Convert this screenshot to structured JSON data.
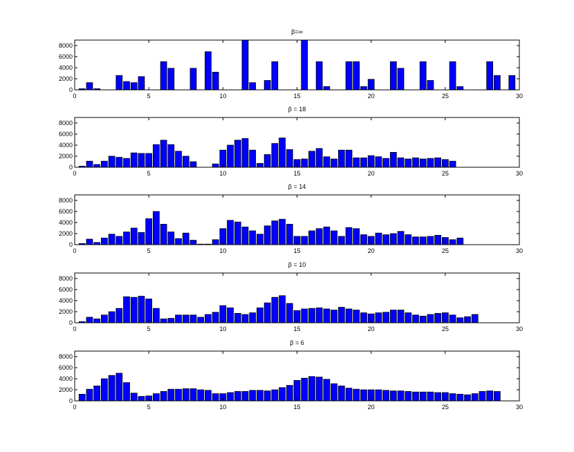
{
  "colors": {
    "bar": "#0000ff",
    "bar_edge": "#000000",
    "axis": "#000000",
    "background": "#ffffff"
  },
  "chart_data": [
    {
      "type": "bar",
      "title": "β=∞",
      "xlim": [
        0,
        30
      ],
      "ylim": [
        0,
        9000
      ],
      "xticks": [
        "0",
        "5",
        "10",
        "15",
        "20",
        "25",
        "30"
      ],
      "yticks": [
        "0",
        "2000",
        "4000",
        "6000",
        "8000"
      ],
      "bin_width": 0.5,
      "x": [
        0.5,
        1,
        1.5,
        2,
        2.5,
        3,
        3.5,
        4,
        4.5,
        5,
        5.5,
        6,
        6.5,
        7,
        7.5,
        8,
        8.5,
        9,
        9.5,
        10,
        10.5,
        11,
        11.5,
        12,
        12.5,
        13,
        13.5,
        14,
        14.5,
        15,
        15.5,
        16,
        16.5,
        17,
        17.5,
        18,
        18.5,
        19,
        19.5,
        20,
        20.5,
        21,
        21.5,
        22,
        22.5,
        23,
        23.5,
        24,
        24.5,
        25,
        25.5,
        26,
        26.5,
        27,
        27.5,
        28,
        28.5,
        29,
        29.5,
        30
      ],
      "values": [
        200,
        1300,
        200,
        0,
        0,
        2600,
        1500,
        1300,
        2400,
        0,
        0,
        5100,
        3900,
        0,
        0,
        3900,
        0,
        6900,
        3200,
        0,
        0,
        0,
        9000,
        1300,
        0,
        1700,
        5100,
        0,
        0,
        0,
        9000,
        0,
        5100,
        600,
        0,
        0,
        5100,
        5100,
        600,
        1900,
        0,
        0,
        5100,
        3900,
        0,
        0,
        5100,
        1700,
        0,
        0,
        5100,
        600,
        0,
        0,
        0,
        5100,
        2600,
        0,
        2600,
        0
      ],
      "grid": false
    },
    {
      "type": "bar",
      "title": "β = 18",
      "xlim": [
        0,
        30
      ],
      "ylim": [
        0,
        9000
      ],
      "xticks": [
        "0",
        "5",
        "10",
        "15",
        "20",
        "25",
        "30"
      ],
      "yticks": [
        "0",
        "2000",
        "4000",
        "6000",
        "8000"
      ],
      "bin_width": 0.5,
      "x": [
        0.5,
        1,
        1.5,
        2,
        2.5,
        3,
        3.5,
        4,
        4.5,
        5,
        5.5,
        6,
        6.5,
        7,
        7.5,
        8,
        8.5,
        9,
        9.5,
        10,
        10.5,
        11,
        11.5,
        12,
        12.5,
        13,
        13.5,
        14,
        14.5,
        15,
        15.5,
        16,
        16.5,
        17,
        17.5,
        18,
        18.5,
        19,
        19.5,
        20,
        20.5,
        21,
        21.5,
        22,
        22.5,
        23,
        23.5,
        24,
        24.5,
        25,
        25.5,
        26,
        26.5,
        27,
        27.5,
        28,
        28.5,
        29,
        29.5,
        30
      ],
      "values": [
        200,
        1100,
        500,
        1100,
        2000,
        1800,
        1600,
        2600,
        2500,
        2500,
        4100,
        4900,
        4100,
        2900,
        2000,
        1000,
        0,
        0,
        600,
        3100,
        4000,
        4900,
        5200,
        3100,
        700,
        2300,
        4300,
        5300,
        3200,
        1400,
        1500,
        2900,
        3400,
        1900,
        1500,
        3100,
        3100,
        1700,
        1700,
        2100,
        1900,
        1600,
        2700,
        1700,
        1500,
        1700,
        1500,
        1600,
        1700,
        1400,
        1100,
        0,
        0,
        0,
        0,
        0,
        0,
        0,
        0,
        0
      ],
      "grid": false
    },
    {
      "type": "bar",
      "title": "β = 14",
      "xlim": [
        0,
        30
      ],
      "ylim": [
        0,
        9000
      ],
      "xticks": [
        "0",
        "5",
        "10",
        "15",
        "20",
        "25",
        "30"
      ],
      "yticks": [
        "0",
        "2000",
        "4000",
        "6000",
        "8000"
      ],
      "bin_width": 0.5,
      "x": [
        0.5,
        1,
        1.5,
        2,
        2.5,
        3,
        3.5,
        4,
        4.5,
        5,
        5.5,
        6,
        6.5,
        7,
        7.5,
        8,
        8.5,
        9,
        9.5,
        10,
        10.5,
        11,
        11.5,
        12,
        12.5,
        13,
        13.5,
        14,
        14.5,
        15,
        15.5,
        16,
        16.5,
        17,
        17.5,
        18,
        18.5,
        19,
        19.5,
        20,
        20.5,
        21,
        21.5,
        22,
        22.5,
        23,
        23.5,
        24,
        24.5,
        25,
        25.5,
        26,
        26.5,
        27,
        27.5,
        28,
        28.5,
        29,
        29.5,
        30
      ],
      "values": [
        200,
        1000,
        400,
        1200,
        1900,
        1500,
        2300,
        3000,
        2200,
        4700,
        6000,
        3700,
        2300,
        1100,
        2100,
        800,
        100,
        100,
        900,
        2900,
        4400,
        4100,
        3200,
        2500,
        1900,
        3400,
        4300,
        4600,
        3700,
        1500,
        1500,
        2500,
        2900,
        3200,
        2500,
        1500,
        3100,
        2900,
        1800,
        1500,
        2100,
        1800,
        2000,
        2400,
        1800,
        1400,
        1400,
        1500,
        1700,
        1300,
        900,
        1200,
        0,
        0,
        0,
        0,
        0,
        0,
        0,
        0
      ],
      "grid": false
    },
    {
      "type": "bar",
      "title": "β = 10",
      "xlim": [
        0,
        30
      ],
      "ylim": [
        0,
        9000
      ],
      "xticks": [
        "0",
        "5",
        "10",
        "15",
        "20",
        "25",
        "30"
      ],
      "yticks": [
        "0",
        "2000",
        "4000",
        "6000",
        "8000"
      ],
      "bin_width": 0.5,
      "x": [
        0.5,
        1,
        1.5,
        2,
        2.5,
        3,
        3.5,
        4,
        4.5,
        5,
        5.5,
        6,
        6.5,
        7,
        7.5,
        8,
        8.5,
        9,
        9.5,
        10,
        10.5,
        11,
        11.5,
        12,
        12.5,
        13,
        13.5,
        14,
        14.5,
        15,
        15.5,
        16,
        16.5,
        17,
        17.5,
        18,
        18.5,
        19,
        19.5,
        20,
        20.5,
        21,
        21.5,
        22,
        22.5,
        23,
        23.5,
        24,
        24.5,
        25,
        25.5,
        26,
        26.5,
        27,
        27.5,
        28,
        28.5,
        29,
        29.5,
        30
      ],
      "values": [
        200,
        1000,
        700,
        1400,
        2000,
        2600,
        4700,
        4600,
        4800,
        4300,
        2600,
        700,
        800,
        1400,
        1400,
        1400,
        1000,
        1500,
        1900,
        3100,
        2700,
        1700,
        1500,
        1800,
        2700,
        3600,
        4600,
        4900,
        3500,
        2200,
        2500,
        2600,
        2700,
        2500,
        2300,
        2800,
        2500,
        2300,
        1800,
        1600,
        1800,
        1900,
        2300,
        2300,
        1800,
        1400,
        1200,
        1500,
        1700,
        1800,
        1400,
        900,
        1100,
        1500,
        0,
        0,
        0,
        0,
        0,
        0
      ],
      "grid": false
    },
    {
      "type": "bar",
      "title": "β = 6",
      "xlim": [
        0,
        30
      ],
      "ylim": [
        0,
        9000
      ],
      "xticks": [
        "0",
        "5",
        "10",
        "15",
        "20",
        "25",
        "30"
      ],
      "yticks": [
        "0",
        "2000",
        "4000",
        "6000",
        "8000"
      ],
      "bin_width": 0.5,
      "x": [
        0.5,
        1,
        1.5,
        2,
        2.5,
        3,
        3.5,
        4,
        4.5,
        5,
        5.5,
        6,
        6.5,
        7,
        7.5,
        8,
        8.5,
        9,
        9.5,
        10,
        10.5,
        11,
        11.5,
        12,
        12.5,
        13,
        13.5,
        14,
        14.5,
        15,
        15.5,
        16,
        16.5,
        17,
        17.5,
        18,
        18.5,
        19,
        19.5,
        20,
        20.5,
        21,
        21.5,
        22,
        22.5,
        23,
        23.5,
        24,
        24.5,
        25,
        25.5,
        26,
        26.5,
        27,
        27.5,
        28,
        28.5,
        29,
        29.5,
        30
      ],
      "values": [
        1200,
        2100,
        2700,
        4000,
        4600,
        5000,
        3300,
        1400,
        800,
        900,
        1300,
        1700,
        2100,
        2100,
        2200,
        2200,
        2000,
        1900,
        1300,
        1300,
        1500,
        1700,
        1700,
        1900,
        1900,
        1800,
        2000,
        2400,
        2800,
        3700,
        4100,
        4400,
        4300,
        3900,
        3100,
        2700,
        2300,
        2100,
        2000,
        2000,
        2000,
        1900,
        1800,
        1800,
        1700,
        1600,
        1600,
        1600,
        1500,
        1500,
        1300,
        1200,
        1100,
        1300,
        1700,
        1800,
        1700,
        0,
        0,
        0
      ],
      "grid": false
    }
  ]
}
